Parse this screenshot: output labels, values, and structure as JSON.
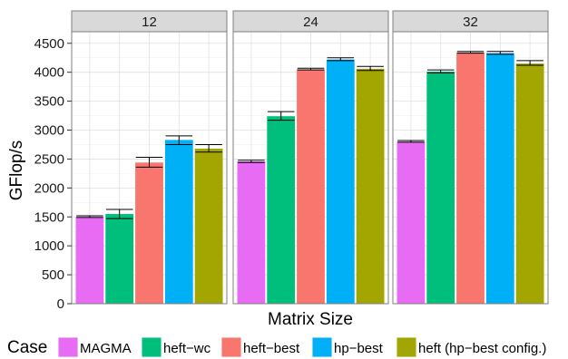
{
  "chart_data": {
    "type": "bar",
    "title": "",
    "xlabel": "Matrix Size",
    "ylabel": "GFlop/s",
    "ylim": [
      0,
      4700
    ],
    "yticks": [
      0,
      500,
      1000,
      1500,
      2000,
      2500,
      3000,
      3500,
      4000,
      4500
    ],
    "grid": true,
    "legend": {
      "title": "Case",
      "position": "bottom"
    },
    "panels": [
      "12",
      "24",
      "32"
    ],
    "series": [
      {
        "name": "MAGMA",
        "color": "#E76BF3",
        "values": [
          1500,
          2460,
          2800
        ],
        "err_low": [
          1490,
          2440,
          2790
        ],
        "err_high": [
          1520,
          2480,
          2820
        ]
      },
      {
        "name": "heft−wc",
        "color": "#00BF7D",
        "values": [
          1550,
          3240,
          4010
        ],
        "err_low": [
          1470,
          3170,
          3990
        ],
        "err_high": [
          1630,
          3320,
          4040
        ]
      },
      {
        "name": "heft−best",
        "color": "#F8766D",
        "values": [
          2440,
          4050,
          4340
        ],
        "err_low": [
          2360,
          4040,
          4330
        ],
        "err_high": [
          2530,
          4070,
          4360
        ]
      },
      {
        "name": "hp−best",
        "color": "#00B0F6",
        "values": [
          2830,
          4220,
          4330
        ],
        "err_low": [
          2750,
          4200,
          4310
        ],
        "err_high": [
          2900,
          4250,
          4360
        ]
      },
      {
        "name": "heft (hp−best config.)",
        "color": "#A3A500",
        "values": [
          2680,
          4060,
          4150
        ],
        "err_low": [
          2620,
          4030,
          4120
        ],
        "err_high": [
          2750,
          4100,
          4200
        ]
      }
    ]
  }
}
